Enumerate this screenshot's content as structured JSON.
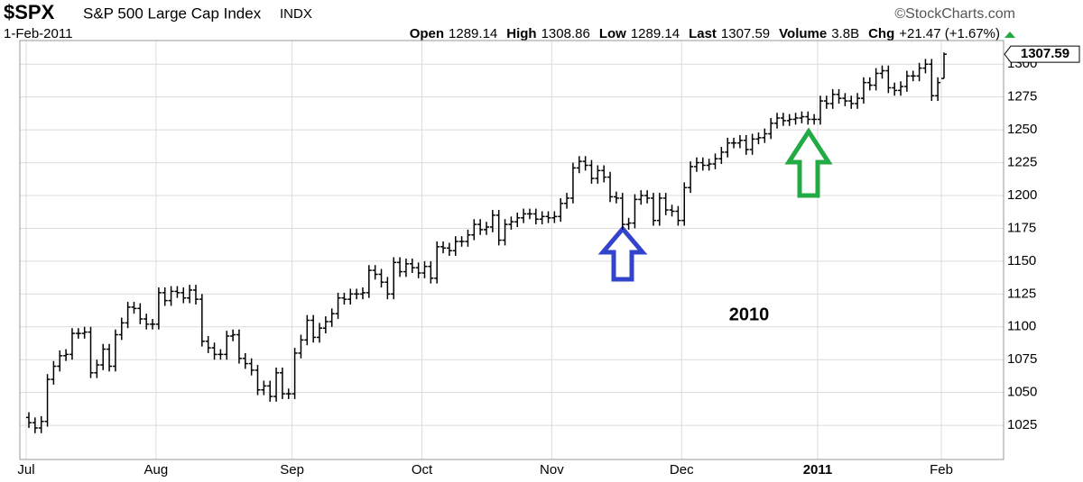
{
  "header": {
    "symbol": "$SPX",
    "name": "S&P 500 Large Cap Index",
    "exchange": "INDX",
    "date": "1-Feb-2011",
    "credit": "©StockCharts.com",
    "stats": [
      {
        "label": "Open",
        "value": "1289.14"
      },
      {
        "label": "High",
        "value": "1308.86"
      },
      {
        "label": "Low",
        "value": "1289.14"
      },
      {
        "label": "Last",
        "value": "1307.59"
      },
      {
        "label": "Volume",
        "value": "3.8B"
      },
      {
        "label": "Chg",
        "value": "+21.47 (+1.67%)"
      }
    ]
  },
  "chart_data": {
    "type": "ohlc",
    "color": "#000000",
    "grid": true,
    "annotation": "2010",
    "categories": [
      "Jul",
      null,
      null,
      null,
      null,
      null,
      null,
      null,
      null,
      null,
      null,
      null,
      null,
      null,
      null,
      null,
      null,
      null,
      null,
      null,
      null,
      "Aug",
      null,
      null,
      null,
      null,
      null,
      null,
      null,
      null,
      null,
      null,
      null,
      null,
      null,
      null,
      null,
      null,
      null,
      null,
      null,
      null,
      null,
      "Sep",
      null,
      null,
      null,
      null,
      null,
      null,
      null,
      null,
      null,
      null,
      null,
      null,
      null,
      null,
      null,
      null,
      null,
      null,
      null,
      null,
      "Oct",
      null,
      null,
      null,
      null,
      null,
      null,
      null,
      null,
      null,
      null,
      null,
      null,
      null,
      null,
      null,
      null,
      null,
      null,
      null,
      null,
      "Nov",
      null,
      null,
      null,
      null,
      null,
      null,
      null,
      null,
      null,
      null,
      null,
      null,
      null,
      null,
      null,
      null,
      null,
      null,
      null,
      null,
      "Dec",
      null,
      null,
      null,
      null,
      null,
      null,
      null,
      null,
      null,
      null,
      null,
      null,
      null,
      null,
      null,
      null,
      null,
      null,
      null,
      null,
      null,
      "2011",
      null,
      null,
      null,
      null,
      null,
      null,
      null,
      null,
      null,
      null,
      null,
      null,
      null,
      null,
      null,
      null,
      null,
      null,
      null,
      "Feb"
    ],
    "open": [
      1031,
      1027,
      1023,
      1028,
      1060,
      1070,
      1078,
      1079,
      1095,
      1095,
      1096,
      1065,
      1071,
      1083,
      1070,
      1094,
      1103,
      1115,
      1114,
      1106,
      1102,
      1102,
      1126,
      1120,
      1127,
      1126,
      1122,
      1128,
      1121,
      1089,
      1084,
      1079,
      1079,
      1093,
      1094,
      1076,
      1072,
      1067,
      1052,
      1055,
      1047,
      1065,
      1049,
      1049,
      1080,
      1090,
      1105,
      1092,
      1099,
      1104,
      1110,
      1122,
      1121,
      1125,
      1125,
      1126,
      1143,
      1140,
      1134,
      1125,
      1149,
      1142,
      1148,
      1145,
      1141,
      1146,
      1137,
      1161,
      1160,
      1158,
      1165,
      1165,
      1170,
      1178,
      1174,
      1176,
      1185,
      1166,
      1178,
      1180,
      1183,
      1186,
      1186,
      1182,
      1184,
      1183,
      1184,
      1194,
      1198,
      1221,
      1226,
      1223,
      1213,
      1219,
      1214,
      1199,
      1198,
      1178,
      1179,
      1197,
      1200,
      1198,
      1181,
      1198,
      1189,
      1188,
      1181,
      1206,
      1222,
      1225,
      1223,
      1224,
      1228,
      1233,
      1240,
      1240,
      1242,
      1235,
      1243,
      1244,
      1247,
      1255,
      1259,
      1257,
      1258,
      1259,
      1260,
      1258,
      1258,
      1272,
      1270,
      1277,
      1274,
      1272,
      1270,
      1274,
      1286,
      1284,
      1293,
      1295,
      1282,
      1280,
      1283,
      1291,
      1291,
      1297,
      1300,
      1276,
      1289.14
    ],
    "high": [
      1035,
      1031,
      1032,
      1064,
      1074,
      1082,
      1083,
      1099,
      1099,
      1100,
      1100,
      1075,
      1087,
      1087,
      1098,
      1107,
      1119,
      1119,
      1118,
      1110,
      1106,
      1130,
      1130,
      1131,
      1131,
      1130,
      1132,
      1132,
      1125,
      1093,
      1088,
      1083,
      1097,
      1098,
      1098,
      1080,
      1076,
      1071,
      1059,
      1059,
      1069,
      1069,
      1053,
      1084,
      1094,
      1109,
      1109,
      1103,
      1108,
      1114,
      1126,
      1126,
      1129,
      1129,
      1130,
      1147,
      1147,
      1144,
      1138,
      1153,
      1153,
      1152,
      1152,
      1149,
      1150,
      1150,
      1165,
      1165,
      1164,
      1169,
      1169,
      1174,
      1182,
      1182,
      1180,
      1189,
      1189,
      1182,
      1184,
      1187,
      1190,
      1190,
      1190,
      1188,
      1188,
      1188,
      1198,
      1202,
      1225,
      1230,
      1230,
      1227,
      1223,
      1223,
      1218,
      1203,
      1202,
      1183,
      1201,
      1204,
      1204,
      1202,
      1202,
      1202,
      1193,
      1192,
      1210,
      1226,
      1229,
      1229,
      1228,
      1232,
      1237,
      1244,
      1244,
      1246,
      1246,
      1247,
      1248,
      1251,
      1259,
      1263,
      1263,
      1262,
      1263,
      1264,
      1264,
      1262,
      1276,
      1276,
      1281,
      1281,
      1278,
      1276,
      1278,
      1290,
      1290,
      1297,
      1299,
      1299,
      1286,
      1287,
      1295,
      1295,
      1301,
      1304,
      1304,
      1290,
      1308.86
    ],
    "low": [
      1023,
      1019,
      1019,
      1024,
      1056,
      1066,
      1074,
      1075,
      1091,
      1091,
      1061,
      1061,
      1067,
      1066,
      1066,
      1090,
      1099,
      1110,
      1102,
      1098,
      1098,
      1098,
      1116,
      1116,
      1122,
      1118,
      1118,
      1117,
      1085,
      1080,
      1075,
      1075,
      1075,
      1089,
      1072,
      1068,
      1063,
      1048,
      1048,
      1043,
      1043,
      1045,
      1045,
      1045,
      1076,
      1086,
      1088,
      1088,
      1095,
      1100,
      1106,
      1117,
      1117,
      1121,
      1121,
      1122,
      1136,
      1130,
      1121,
      1121,
      1138,
      1138,
      1141,
      1137,
      1137,
      1133,
      1133,
      1156,
      1154,
      1154,
      1161,
      1161,
      1166,
      1170,
      1170,
      1172,
      1162,
      1162,
      1174,
      1176,
      1179,
      1182,
      1178,
      1178,
      1179,
      1179,
      1180,
      1190,
      1194,
      1217,
      1219,
      1209,
      1209,
      1210,
      1195,
      1194,
      1174,
      1174,
      1175,
      1193,
      1194,
      1177,
      1177,
      1185,
      1184,
      1177,
      1177,
      1202,
      1218,
      1219,
      1219,
      1220,
      1224,
      1229,
      1236,
      1236,
      1231,
      1231,
      1239,
      1240,
      1243,
      1251,
      1253,
      1253,
      1254,
      1255,
      1254,
      1254,
      1254,
      1266,
      1266,
      1270,
      1268,
      1266,
      1266,
      1270,
      1280,
      1280,
      1289,
      1278,
      1276,
      1276,
      1279,
      1287,
      1287,
      1293,
      1272,
      1272,
      1289.14
    ],
    "close": [
      1027,
      1023,
      1028,
      1060,
      1070,
      1078,
      1079,
      1095,
      1095,
      1096,
      1065,
      1071,
      1083,
      1070,
      1094,
      1103,
      1115,
      1114,
      1106,
      1102,
      1102,
      1126,
      1120,
      1127,
      1126,
      1122,
      1128,
      1121,
      1089,
      1084,
      1079,
      1079,
      1093,
      1094,
      1076,
      1072,
      1067,
      1052,
      1055,
      1047,
      1065,
      1049,
      1049,
      1080,
      1090,
      1105,
      1092,
      1099,
      1104,
      1110,
      1122,
      1121,
      1125,
      1125,
      1126,
      1143,
      1140,
      1134,
      1125,
      1149,
      1142,
      1148,
      1145,
      1141,
      1146,
      1137,
      1161,
      1160,
      1158,
      1165,
      1165,
      1170,
      1178,
      1174,
      1176,
      1185,
      1166,
      1178,
      1180,
      1183,
      1186,
      1186,
      1182,
      1184,
      1183,
      1184,
      1194,
      1198,
      1221,
      1226,
      1223,
      1213,
      1219,
      1214,
      1199,
      1198,
      1178,
      1179,
      1197,
      1200,
      1198,
      1181,
      1198,
      1189,
      1188,
      1181,
      1206,
      1222,
      1225,
      1223,
      1224,
      1228,
      1233,
      1240,
      1240,
      1242,
      1235,
      1243,
      1244,
      1247,
      1255,
      1259,
      1257,
      1258,
      1259,
      1260,
      1258,
      1258,
      1272,
      1270,
      1277,
      1274,
      1272,
      1270,
      1274,
      1286,
      1284,
      1293,
      1295,
      1282,
      1280,
      1283,
      1291,
      1291,
      1297,
      1300,
      1276,
      1286,
      1307.59
    ],
    "ylim": [
      999,
      1318
    ],
    "yticks": [
      1025,
      1050,
      1075,
      1100,
      1125,
      1150,
      1175,
      1200,
      1225,
      1250,
      1275,
      1300
    ]
  }
}
